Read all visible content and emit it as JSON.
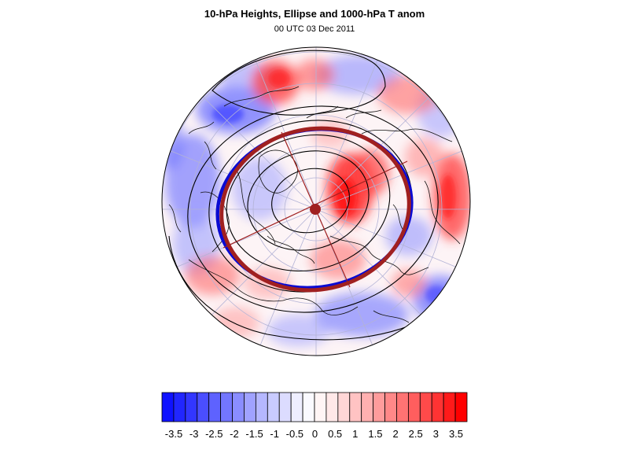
{
  "header": {
    "title": "10-hPa Heights, Ellipse and 1000-hPa T anom",
    "subtitle": "00 UTC 03 Dec 2011"
  },
  "colorbar": {
    "tick_labels": [
      "-3.5",
      "-3",
      "-2.5",
      "-2",
      "-1.5",
      "-1",
      "-0.5",
      "0",
      "0.5",
      "1",
      "1.5",
      "2",
      "2.5",
      "3",
      "3.5"
    ],
    "colors": [
      "#0f12ff",
      "#2126ff",
      "#3236ff",
      "#4a4eff",
      "#5e62ff",
      "#7376ff",
      "#8a8dff",
      "#a0a2ff",
      "#b5b7ff",
      "#c9cbff",
      "#dcdcff",
      "#eeeeff",
      "#fafaff",
      "#fff5f5",
      "#ffe8e8",
      "#ffd6d6",
      "#ffc3c3",
      "#ffb0b0",
      "#ff9c9c",
      "#ff8888",
      "#ff7373",
      "#ff5e5e",
      "#ff4a4a",
      "#ff3333",
      "#ff1a1a",
      "#ff0000"
    ]
  },
  "map_colors": {
    "ellipse_red": "#a02020",
    "ellipse_blue": "#0a0ad2",
    "warm": "#ff3b3b",
    "cold": "#4a4eff"
  }
}
